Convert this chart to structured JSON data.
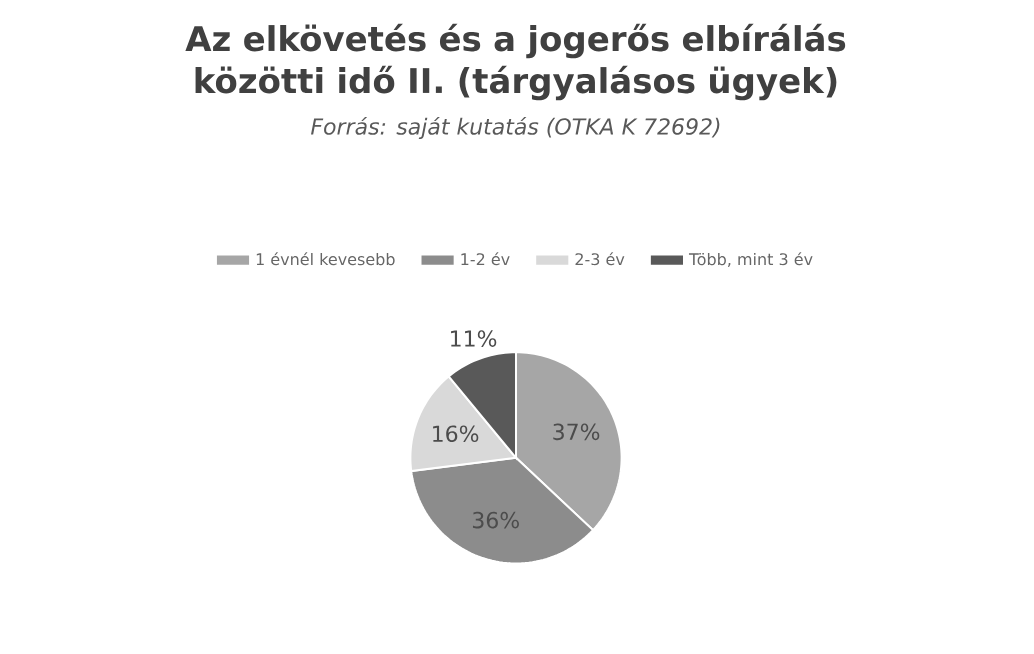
{
  "chart_data": {
    "type": "pie",
    "title": "Az elkövetés és a jogerős elbírálás közötti idő II. (tárgyalásos ügyek)",
    "subtitle": "Forrás: saját kutatás (OTKA K 72692)",
    "categories": [
      "1 évnél kevesebb",
      "1-2 év",
      "2-3 év",
      "Több, mint 3 év"
    ],
    "values": [
      37,
      36,
      16,
      11
    ],
    "value_labels": [
      "37%",
      "36%",
      "16%",
      "11%"
    ],
    "colors": [
      "#a6a6a6",
      "#8c8c8c",
      "#d9d9d9",
      "#595959"
    ],
    "legend": "top"
  }
}
